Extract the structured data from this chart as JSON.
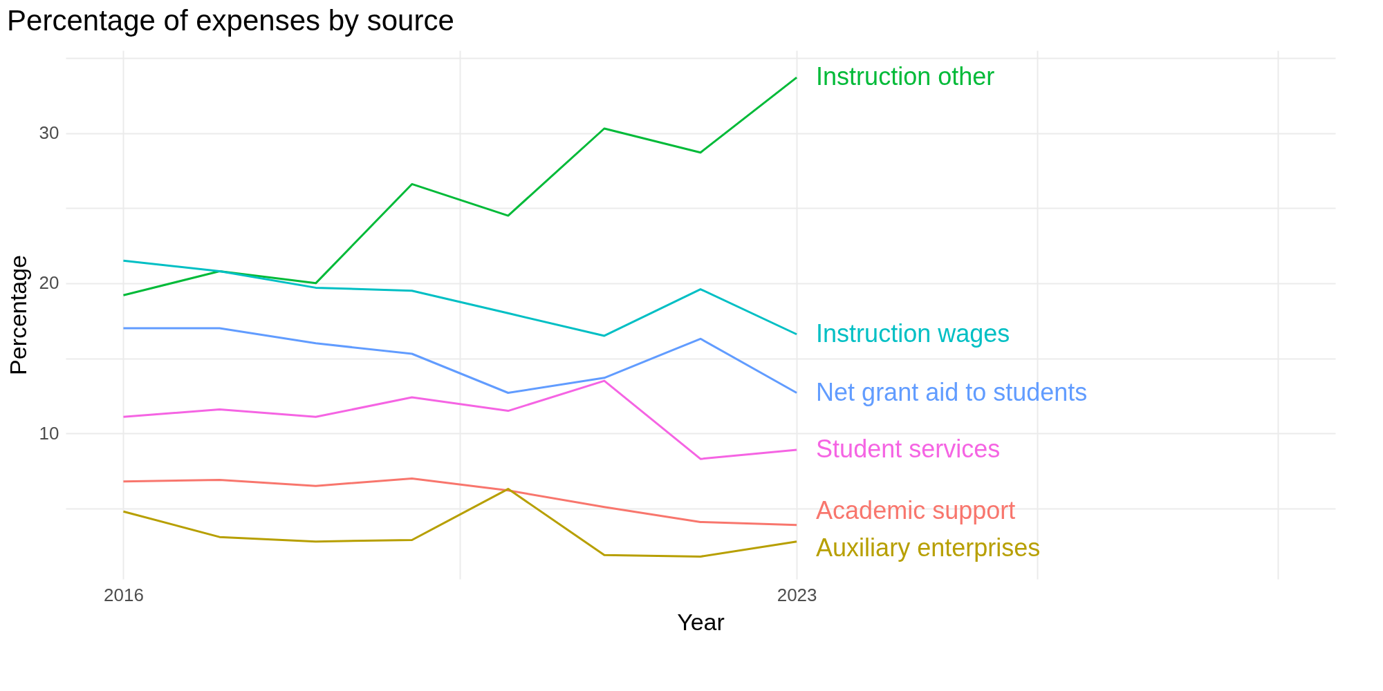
{
  "chart_data": {
    "type": "line",
    "title": "Percentage of expenses by source",
    "xlabel": "Year",
    "ylabel": "Percentage",
    "x": [
      2016,
      2017,
      2018,
      2019,
      2020,
      2021,
      2022,
      2023
    ],
    "series": [
      {
        "name": "Instruction other",
        "color": "#00ba38",
        "values": [
          19.2,
          20.8,
          20.0,
          26.6,
          24.5,
          30.3,
          28.7,
          33.7
        ]
      },
      {
        "name": "Instruction wages",
        "color": "#00bfc4",
        "values": [
          21.5,
          20.8,
          19.7,
          19.5,
          18.0,
          16.5,
          19.6,
          16.6
        ]
      },
      {
        "name": "Net grant aid to students",
        "color": "#619cff",
        "values": [
          17.0,
          17.0,
          16.0,
          15.3,
          12.7,
          13.7,
          16.3,
          12.7
        ]
      },
      {
        "name": "Student services",
        "color": "#f564e3",
        "values": [
          11.1,
          11.6,
          11.1,
          12.4,
          11.5,
          13.5,
          8.3,
          8.9
        ]
      },
      {
        "name": "Academic support",
        "color": "#f8766d",
        "values": [
          6.8,
          6.9,
          6.5,
          7.0,
          6.2,
          5.1,
          4.1,
          3.9
        ]
      },
      {
        "name": "Auxiliary enterprises",
        "color": "#b79f00",
        "values": [
          4.8,
          3.1,
          2.8,
          2.9,
          6.3,
          1.9,
          1.8,
          2.8
        ]
      }
    ],
    "xlim": [
      2015.4,
      2028.6
    ],
    "xticks": [
      2016,
      {
        "value": 2019.5,
        "label": null
      },
      2023,
      {
        "value": 2025.5,
        "label": null
      },
      {
        "value": 2028,
        "label": null
      }
    ],
    "ylim": [
      0.3,
      35.5
    ],
    "yticks": [
      {
        "value": 5,
        "label": null
      },
      10,
      {
        "value": 15,
        "label": null
      },
      20,
      {
        "value": 25,
        "label": null
      },
      30,
      {
        "value": 35,
        "label": null
      }
    ],
    "grid": true,
    "legend": false,
    "marker": "none",
    "line_style": "solid"
  }
}
